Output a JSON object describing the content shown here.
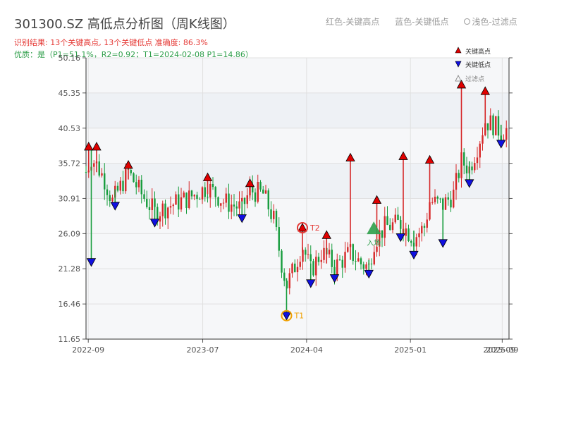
{
  "chart_data": {
    "type": "candlestick",
    "title": "301300.SZ 高低点分析图（周K线图）",
    "subtitle_1": "识别结果: 13个关键高点, 13个关键低点  准确度: 86.3%",
    "subtitle_2": "优质：是（P1=51.1%，R2=0.92；T1=2024-02-08 P1=14.86）",
    "header_legend": [
      "红色-关键高点",
      "蓝色-关键低点",
      "浅色-过滤点"
    ],
    "legend": [
      "关键高点",
      "关键低点",
      "过滤点"
    ],
    "y_ticks": [
      11.65,
      16.46,
      21.28,
      26.09,
      30.91,
      35.72,
      40.53,
      45.35,
      50.16
    ],
    "ylim": [
      11.65,
      50.16
    ],
    "x_ticks": [
      "2022-09",
      "2023-07",
      "2024-04",
      "2025-01",
      "2025-09"
    ],
    "x_tick_overlap": "2025-09",
    "annotations": [
      {
        "label": "T1",
        "date": "2024-02-08",
        "value": 14.86
      },
      {
        "label": "T2",
        "date": "2024-03-21",
        "value": 26.9
      },
      {
        "label": "入场",
        "date": "2024-09-26",
        "value": 26.5
      }
    ],
    "key_highs": [
      {
        "date": "2022-09-02",
        "value": 38.0
      },
      {
        "date": "2022-09-23",
        "value": 38.0
      },
      {
        "date": "2022-12-16",
        "value": 35.5
      },
      {
        "date": "2023-07-14",
        "value": 33.8
      },
      {
        "date": "2023-11-03",
        "value": 33.0
      },
      {
        "date": "2024-03-21",
        "value": 26.9
      },
      {
        "date": "2024-05-24",
        "value": 25.9
      },
      {
        "date": "2024-07-26",
        "value": 36.5
      },
      {
        "date": "2024-10-04",
        "value": 30.7
      },
      {
        "date": "2024-12-13",
        "value": 36.7
      },
      {
        "date": "2025-02-21",
        "value": 36.2
      },
      {
        "date": "2025-05-16",
        "value": 46.5
      },
      {
        "date": "2025-07-18",
        "value": 45.6
      }
    ],
    "key_lows": [
      {
        "date": "2022-09-09",
        "value": 22.2
      },
      {
        "date": "2022-11-11",
        "value": 29.9
      },
      {
        "date": "2023-02-24",
        "value": 27.6
      },
      {
        "date": "2023-10-13",
        "value": 28.2
      },
      {
        "date": "2024-02-08",
        "value": 14.86
      },
      {
        "date": "2024-04-12",
        "value": 19.3
      },
      {
        "date": "2024-06-14",
        "value": 20.0
      },
      {
        "date": "2024-09-13",
        "value": 20.6
      },
      {
        "date": "2024-12-06",
        "value": 25.6
      },
      {
        "date": "2025-01-10",
        "value": 23.2
      },
      {
        "date": "2025-03-28",
        "value": 24.8
      },
      {
        "date": "2025-06-06",
        "value": 33.0
      },
      {
        "date": "2025-08-29",
        "value": 38.4
      }
    ],
    "bg_bands": [
      [
        30.91,
        35.72
      ],
      [
        40.53,
        45.35
      ]
    ]
  },
  "colors": {
    "up": "#d62728",
    "down": "#169c3c",
    "high_marker": "#e00000",
    "low_marker": "#1010e0",
    "t1": "#f0a000",
    "t2": "#e53935",
    "entry": "#2e9e4a",
    "grid": "#e0e0e0",
    "plot_bg": "#f6f7f9"
  }
}
